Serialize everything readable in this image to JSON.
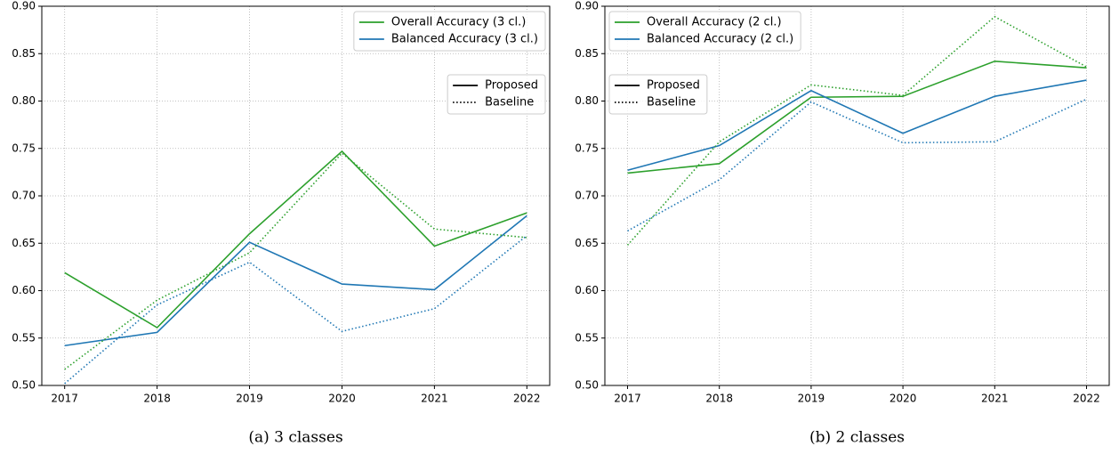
{
  "chart_data": [
    {
      "type": "line",
      "caption": "(a) 3 classes",
      "categories": [
        "2017",
        "2018",
        "2019",
        "2020",
        "2021",
        "2022"
      ],
      "ylim": [
        0.5,
        0.9
      ],
      "yticks": [
        {
          "value": 0.5,
          "label": "0.50"
        },
        0.55,
        {
          "value": 0.6,
          "label": "0.60"
        },
        0.65,
        {
          "value": 0.7,
          "label": "0.70"
        },
        0.75,
        {
          "value": 0.8,
          "label": "0.80"
        },
        0.85,
        {
          "value": 0.9,
          "label": "0.90"
        }
      ],
      "grid": true,
      "legend_loc": "upper right",
      "style_legend_loc": "center right",
      "line_styles": [
        {
          "label": "Proposed",
          "dash": "solid"
        },
        {
          "label": "Baseline",
          "dash": "dotted"
        }
      ],
      "series": [
        {
          "name": "Overall Accuracy (3 cl.)",
          "color": "#2ca02c",
          "dash": "solid",
          "values": [
            0.619,
            0.561,
            0.66,
            0.747,
            0.647,
            0.682
          ]
        },
        {
          "name": "Balanced Accuracy (3 cl.)",
          "color": "#1f77b4",
          "dash": "solid",
          "values": [
            0.542,
            0.556,
            0.651,
            0.607,
            0.601,
            0.679
          ]
        },
        {
          "name": "Overall Accuracy (3 cl.)",
          "color": "#2ca02c",
          "dash": "dotted",
          "values": [
            0.517,
            0.59,
            0.64,
            0.745,
            0.665,
            0.656
          ]
        },
        {
          "name": "Balanced Accuracy (3 cl.)",
          "color": "#1f77b4",
          "dash": "dotted",
          "values": [
            0.502,
            0.585,
            0.63,
            0.557,
            0.581,
            0.658
          ]
        }
      ]
    },
    {
      "type": "line",
      "caption": "(b) 2 classes",
      "categories": [
        "2017",
        "2018",
        "2019",
        "2020",
        "2021",
        "2022"
      ],
      "ylim": [
        0.5,
        0.9
      ],
      "yticks": [
        {
          "value": 0.5,
          "label": "0.50"
        },
        0.55,
        {
          "value": 0.6,
          "label": "0.60"
        },
        0.65,
        {
          "value": 0.7,
          "label": "0.70"
        },
        0.75,
        {
          "value": 0.8,
          "label": "0.80"
        },
        0.85,
        {
          "value": 0.9,
          "label": "0.90"
        }
      ],
      "grid": true,
      "legend_loc": "upper left",
      "style_legend_loc": "center left",
      "line_styles": [
        {
          "label": "Proposed",
          "dash": "solid"
        },
        {
          "label": "Baseline",
          "dash": "dotted"
        }
      ],
      "series": [
        {
          "name": "Overall Accuracy (2 cl.)",
          "color": "#2ca02c",
          "dash": "solid",
          "values": [
            0.724,
            0.734,
            0.804,
            0.805,
            0.842,
            0.835
          ]
        },
        {
          "name": "Balanced Accuracy (2 cl.)",
          "color": "#1f77b4",
          "dash": "solid",
          "values": [
            0.727,
            0.753,
            0.811,
            0.766,
            0.805,
            0.822
          ]
        },
        {
          "name": "Overall Accuracy (2 cl.)",
          "color": "#2ca02c",
          "dash": "dotted",
          "values": [
            0.648,
            0.757,
            0.817,
            0.806,
            0.889,
            0.836
          ]
        },
        {
          "name": "Balanced Accuracy (2 cl.)",
          "color": "#1f77b4",
          "dash": "dotted",
          "values": [
            0.663,
            0.717,
            0.799,
            0.756,
            0.757,
            0.802
          ]
        }
      ]
    }
  ]
}
